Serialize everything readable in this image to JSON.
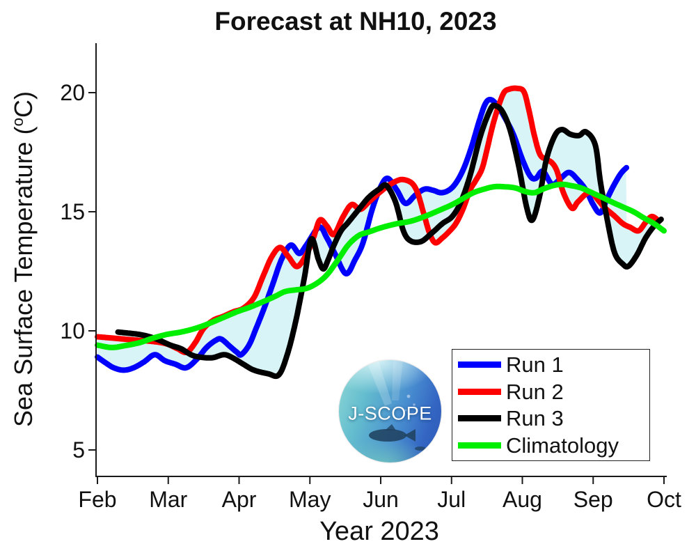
{
  "page": {
    "title": "Forecast at NH10, 2023"
  },
  "axes": {
    "x": {
      "label": "Year 2023",
      "ticks": [
        {
          "m": 2,
          "label": "Feb"
        },
        {
          "m": 3,
          "label": "Mar"
        },
        {
          "m": 4,
          "label": "Apr"
        },
        {
          "m": 5,
          "label": "May"
        },
        {
          "m": 6,
          "label": "Jun"
        },
        {
          "m": 7,
          "label": "Jul"
        },
        {
          "m": 8,
          "label": "Aug"
        },
        {
          "m": 9,
          "label": "Sep"
        },
        {
          "m": 10,
          "label": "Oct"
        }
      ]
    },
    "y": {
      "label_prefix": "Sea Surface Temperature (",
      "label_sup": "o",
      "label_suffix": "C)",
      "ticks": [
        {
          "v": 5,
          "label": "5"
        },
        {
          "v": 10,
          "label": "10"
        },
        {
          "v": 15,
          "label": "15"
        },
        {
          "v": 20,
          "label": "20"
        }
      ]
    }
  },
  "legend": {
    "items": [
      {
        "label": "Run 1",
        "color": "#0000ff"
      },
      {
        "label": "Run 2",
        "color": "#ff0000"
      },
      {
        "label": "Run 3",
        "color": "#000000"
      },
      {
        "label": "Climatology",
        "color": "#00ee00"
      }
    ]
  },
  "logo": {
    "text": "J-SCOPE"
  },
  "chart_data": {
    "type": "line",
    "title": "Forecast at NH10, 2023",
    "xlabel": "Year 2023",
    "ylabel": "Sea Surface Temperature (°C)",
    "x_unit": "month number of 2023 (2=Feb, 10=Oct)",
    "xlim": [
      1.98,
      10.04
    ],
    "ylim": [
      3.9,
      22.1
    ],
    "grid": false,
    "legend_position": "lower right",
    "band": {
      "name": "min-max envelope of Runs 1-3",
      "color": "#d8f4f6"
    },
    "series": [
      {
        "name": "Run 1",
        "color": "#0000ff",
        "width": 8,
        "in_band": true,
        "points": [
          [
            2.0,
            8.9
          ],
          [
            2.12,
            8.65
          ],
          [
            2.23,
            8.45
          ],
          [
            2.37,
            8.35
          ],
          [
            2.51,
            8.45
          ],
          [
            2.66,
            8.7
          ],
          [
            2.81,
            9.0
          ],
          [
            2.95,
            8.75
          ],
          [
            3.1,
            8.6
          ],
          [
            3.25,
            8.45
          ],
          [
            3.4,
            8.8
          ],
          [
            3.54,
            9.3
          ],
          [
            3.67,
            9.6
          ],
          [
            3.75,
            9.65
          ],
          [
            3.87,
            9.35
          ],
          [
            3.97,
            9.1
          ],
          [
            4.03,
            9.0
          ],
          [
            4.14,
            9.4
          ],
          [
            4.24,
            10.1
          ],
          [
            4.36,
            11.0
          ],
          [
            4.48,
            12.0
          ],
          [
            4.6,
            13.0
          ],
          [
            4.73,
            13.6
          ],
          [
            4.85,
            13.25
          ],
          [
            4.95,
            13.6
          ],
          [
            5.13,
            14.35
          ],
          [
            5.24,
            13.9
          ],
          [
            5.36,
            13.2
          ],
          [
            5.51,
            12.4
          ],
          [
            5.64,
            13.0
          ],
          [
            5.75,
            13.7
          ],
          [
            5.88,
            15.1
          ],
          [
            6.0,
            16.05
          ],
          [
            6.1,
            16.4
          ],
          [
            6.23,
            15.9
          ],
          [
            6.35,
            15.35
          ],
          [
            6.49,
            15.7
          ],
          [
            6.62,
            15.95
          ],
          [
            6.74,
            15.9
          ],
          [
            6.85,
            15.8
          ],
          [
            6.96,
            15.9
          ],
          [
            7.06,
            16.2
          ],
          [
            7.17,
            16.8
          ],
          [
            7.28,
            17.7
          ],
          [
            7.39,
            18.8
          ],
          [
            7.48,
            19.55
          ],
          [
            7.56,
            19.7
          ],
          [
            7.66,
            19.4
          ],
          [
            7.78,
            18.8
          ],
          [
            7.88,
            18.2
          ],
          [
            8.0,
            17.2
          ],
          [
            8.11,
            16.5
          ],
          [
            8.19,
            16.4
          ],
          [
            8.29,
            16.7
          ],
          [
            8.42,
            16.15
          ],
          [
            8.54,
            16.4
          ],
          [
            8.66,
            16.65
          ],
          [
            8.78,
            16.35
          ],
          [
            8.9,
            15.9
          ],
          [
            9.0,
            15.3
          ],
          [
            9.1,
            14.95
          ],
          [
            9.19,
            15.5
          ],
          [
            9.29,
            16.1
          ],
          [
            9.39,
            16.6
          ],
          [
            9.47,
            16.85
          ]
        ]
      },
      {
        "name": "Run 2",
        "color": "#ff0000",
        "width": 8,
        "in_band": true,
        "points": [
          [
            2.0,
            9.75
          ],
          [
            2.2,
            9.7
          ],
          [
            2.39,
            9.65
          ],
          [
            2.59,
            9.6
          ],
          [
            2.79,
            9.55
          ],
          [
            2.98,
            9.45
          ],
          [
            3.13,
            9.25
          ],
          [
            3.26,
            9.1
          ],
          [
            3.38,
            9.5
          ],
          [
            3.5,
            10.1
          ],
          [
            3.64,
            10.45
          ],
          [
            3.77,
            10.6
          ],
          [
            3.92,
            10.8
          ],
          [
            4.06,
            10.95
          ],
          [
            4.21,
            11.4
          ],
          [
            4.34,
            12.3
          ],
          [
            4.46,
            13.1
          ],
          [
            4.58,
            13.5
          ],
          [
            4.7,
            13.1
          ],
          [
            4.82,
            12.7
          ],
          [
            4.95,
            13.2
          ],
          [
            5.05,
            13.9
          ],
          [
            5.14,
            14.65
          ],
          [
            5.24,
            14.4
          ],
          [
            5.34,
            14.05
          ],
          [
            5.47,
            14.8
          ],
          [
            5.59,
            15.3
          ],
          [
            5.71,
            15.1
          ],
          [
            5.83,
            15.4
          ],
          [
            5.98,
            15.8
          ],
          [
            6.11,
            16.1
          ],
          [
            6.23,
            16.3
          ],
          [
            6.32,
            16.35
          ],
          [
            6.44,
            16.2
          ],
          [
            6.52,
            15.8
          ],
          [
            6.6,
            15.0
          ],
          [
            6.69,
            14.1
          ],
          [
            6.77,
            13.7
          ],
          [
            6.87,
            13.9
          ],
          [
            6.96,
            14.15
          ],
          [
            7.06,
            14.5
          ],
          [
            7.16,
            15.1
          ],
          [
            7.26,
            15.9
          ],
          [
            7.34,
            16.3
          ],
          [
            7.43,
            16.8
          ],
          [
            7.5,
            17.6
          ],
          [
            7.58,
            18.6
          ],
          [
            7.66,
            19.4
          ],
          [
            7.74,
            20.0
          ],
          [
            7.82,
            20.15
          ],
          [
            7.92,
            20.18
          ],
          [
            8.02,
            20.05
          ],
          [
            8.09,
            19.3
          ],
          [
            8.17,
            18.2
          ],
          [
            8.25,
            17.4
          ],
          [
            8.34,
            17.2
          ],
          [
            8.42,
            17.05
          ],
          [
            8.49,
            16.7
          ],
          [
            8.58,
            15.8
          ],
          [
            8.7,
            15.15
          ],
          [
            8.78,
            15.4
          ],
          [
            8.9,
            15.75
          ],
          [
            8.98,
            15.8
          ],
          [
            9.08,
            15.45
          ],
          [
            9.17,
            15.15
          ],
          [
            9.29,
            14.85
          ],
          [
            9.42,
            14.5
          ],
          [
            9.52,
            14.35
          ],
          [
            9.64,
            14.2
          ],
          [
            9.74,
            14.55
          ],
          [
            9.83,
            14.8
          ],
          [
            9.93,
            14.6
          ]
        ]
      },
      {
        "name": "Run 3",
        "color": "#000000",
        "width": 8,
        "in_band": true,
        "points": [
          [
            2.29,
            9.95
          ],
          [
            2.45,
            9.9
          ],
          [
            2.59,
            9.85
          ],
          [
            2.74,
            9.75
          ],
          [
            2.88,
            9.6
          ],
          [
            3.03,
            9.4
          ],
          [
            3.18,
            9.25
          ],
          [
            3.32,
            9.0
          ],
          [
            3.44,
            8.9
          ],
          [
            3.62,
            8.87
          ],
          [
            3.79,
            9.0
          ],
          [
            3.92,
            8.85
          ],
          [
            4.06,
            8.6
          ],
          [
            4.21,
            8.35
          ],
          [
            4.41,
            8.2
          ],
          [
            4.56,
            8.15
          ],
          [
            4.68,
            9.0
          ],
          [
            4.8,
            10.4
          ],
          [
            4.92,
            12.2
          ],
          [
            5.02,
            13.85
          ],
          [
            5.12,
            13.0
          ],
          [
            5.19,
            12.6
          ],
          [
            5.26,
            13.0
          ],
          [
            5.34,
            13.6
          ],
          [
            5.44,
            14.2
          ],
          [
            5.54,
            14.55
          ],
          [
            5.69,
            15.1
          ],
          [
            5.83,
            15.6
          ],
          [
            5.98,
            15.95
          ],
          [
            6.08,
            16.1
          ],
          [
            6.21,
            15.4
          ],
          [
            6.32,
            14.2
          ],
          [
            6.42,
            13.78
          ],
          [
            6.57,
            13.75
          ],
          [
            6.72,
            14.1
          ],
          [
            6.87,
            14.5
          ],
          [
            7.01,
            14.8
          ],
          [
            7.13,
            15.4
          ],
          [
            7.26,
            16.5
          ],
          [
            7.41,
            18.2
          ],
          [
            7.55,
            19.3
          ],
          [
            7.62,
            19.45
          ],
          [
            7.72,
            19.2
          ],
          [
            7.83,
            18.4
          ],
          [
            7.95,
            16.9
          ],
          [
            8.06,
            15.2
          ],
          [
            8.14,
            14.65
          ],
          [
            8.24,
            15.6
          ],
          [
            8.34,
            17.2
          ],
          [
            8.46,
            18.2
          ],
          [
            8.56,
            18.45
          ],
          [
            8.68,
            18.25
          ],
          [
            8.8,
            18.2
          ],
          [
            8.9,
            18.35
          ],
          [
            9.03,
            17.8
          ],
          [
            9.1,
            16.3
          ],
          [
            9.19,
            14.8
          ],
          [
            9.3,
            13.3
          ],
          [
            9.42,
            12.8
          ],
          [
            9.5,
            12.72
          ],
          [
            9.62,
            13.2
          ],
          [
            9.74,
            13.9
          ],
          [
            9.86,
            14.4
          ],
          [
            9.96,
            14.68
          ]
        ]
      },
      {
        "name": "Climatology",
        "color": "#00ee00",
        "width": 8,
        "in_band": false,
        "points": [
          [
            2.0,
            9.4
          ],
          [
            2.2,
            9.3
          ],
          [
            2.39,
            9.38
          ],
          [
            2.59,
            9.5
          ],
          [
            2.79,
            9.7
          ],
          [
            2.98,
            9.85
          ],
          [
            3.18,
            9.95
          ],
          [
            3.38,
            10.1
          ],
          [
            3.57,
            10.3
          ],
          [
            3.77,
            10.55
          ],
          [
            3.97,
            10.8
          ],
          [
            4.16,
            11.0
          ],
          [
            4.36,
            11.25
          ],
          [
            4.51,
            11.45
          ],
          [
            4.65,
            11.65
          ],
          [
            4.8,
            11.72
          ],
          [
            4.95,
            11.78
          ],
          [
            5.1,
            12.0
          ],
          [
            5.24,
            12.35
          ],
          [
            5.39,
            12.95
          ],
          [
            5.54,
            13.6
          ],
          [
            5.69,
            14.0
          ],
          [
            5.83,
            14.15
          ],
          [
            6.03,
            14.35
          ],
          [
            6.23,
            14.5
          ],
          [
            6.42,
            14.6
          ],
          [
            6.62,
            14.8
          ],
          [
            6.82,
            15.05
          ],
          [
            7.01,
            15.3
          ],
          [
            7.16,
            15.55
          ],
          [
            7.31,
            15.8
          ],
          [
            7.46,
            15.95
          ],
          [
            7.6,
            16.05
          ],
          [
            7.74,
            16.05
          ],
          [
            7.9,
            16.0
          ],
          [
            8.04,
            15.85
          ],
          [
            8.17,
            15.8
          ],
          [
            8.29,
            15.95
          ],
          [
            8.44,
            16.1
          ],
          [
            8.57,
            16.15
          ],
          [
            8.68,
            16.1
          ],
          [
            8.83,
            16.0
          ],
          [
            8.98,
            15.8
          ],
          [
            9.13,
            15.6
          ],
          [
            9.27,
            15.4
          ],
          [
            9.42,
            15.2
          ],
          [
            9.57,
            15.0
          ],
          [
            9.71,
            14.75
          ],
          [
            9.86,
            14.5
          ],
          [
            10.0,
            14.2
          ]
        ]
      }
    ]
  }
}
